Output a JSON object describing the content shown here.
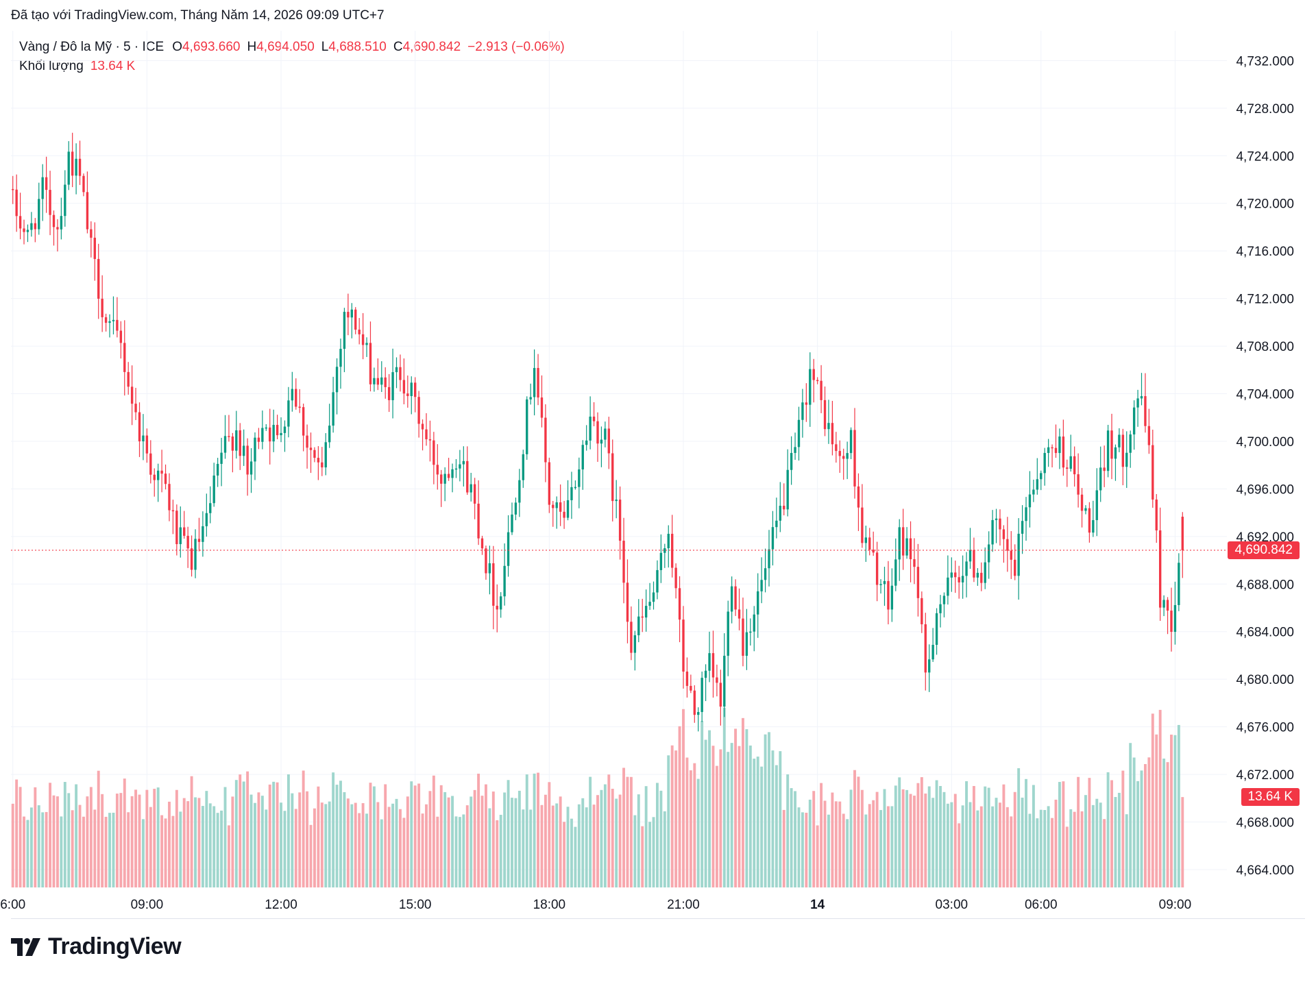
{
  "header": {
    "created_with": "Đã tạo với TradingView.com, Tháng Năm 14, 2026 09:09 UTC+7"
  },
  "legend": {
    "symbol": "Vàng / Đô la Mỹ · 5 · ICE",
    "o_label": "O",
    "o_value": "4,693.660",
    "h_label": "H",
    "h_value": "4,694.050",
    "l_label": "L",
    "l_value": "4,688.510",
    "c_label": "C",
    "c_value": "4,690.842",
    "change": "−2.913 (−0.06%)",
    "volume_label": "Khối lượng",
    "volume_value": "13.64 K"
  },
  "badges": {
    "last_price": "4,690.842",
    "last_volume": "13.64 K"
  },
  "brand": {
    "name": "TradingView",
    "logo": "tradingview-logo-icon"
  },
  "colors": {
    "up": "#089981",
    "down": "#f23645",
    "vol_up": "#9fd6cd",
    "vol_down": "#f7a7ad",
    "grid": "#f0f3fa"
  },
  "chart_data": {
    "type": "candlestick",
    "interval": "5m",
    "y_axis_side": "right",
    "ylim": [
      4662.5,
      4734.5
    ],
    "y_ticks": [
      "4,732.000",
      "4,728.000",
      "4,724.000",
      "4,720.000",
      "4,716.000",
      "4,712.000",
      "4,708.000",
      "4,704.000",
      "4,700.000",
      "4,696.000",
      "4,692.000",
      "4,688.000",
      "4,684.000",
      "4,680.000",
      "4,676.000",
      "4,672.000",
      "4,668.000",
      "4,664.000"
    ],
    "y_tick_values": [
      4732,
      4728,
      4724,
      4720,
      4716,
      4712,
      4708,
      4704,
      4700,
      4696,
      4692,
      4688,
      4684,
      4680,
      4676,
      4672,
      4668,
      4664
    ],
    "x_ticks": [
      {
        "label": "6:00",
        "bar": 0
      },
      {
        "label": "09:00",
        "bar": 36
      },
      {
        "label": "12:00",
        "bar": 72
      },
      {
        "label": "15:00",
        "bar": 108
      },
      {
        "label": "18:00",
        "bar": 144
      },
      {
        "label": "21:00",
        "bar": 180
      },
      {
        "label": "14",
        "bar": 216,
        "bold": true
      },
      {
        "label": "03:00",
        "bar": 252
      },
      {
        "label": "06:00",
        "bar": 276
      },
      {
        "label": "09:00",
        "bar": 312
      }
    ],
    "last_price": 4690.842,
    "volume_max_k": 30,
    "last_volume_k": 13.64,
    "close_path": [
      [
        0,
        4720
      ],
      [
        4,
        4717
      ],
      [
        8,
        4721
      ],
      [
        12,
        4718
      ],
      [
        15,
        4724
      ],
      [
        18,
        4722
      ],
      [
        21,
        4716
      ],
      [
        25,
        4710
      ],
      [
        29,
        4708
      ],
      [
        33,
        4702
      ],
      [
        37,
        4698
      ],
      [
        41,
        4696
      ],
      [
        44,
        4692
      ],
      [
        48,
        4690
      ],
      [
        52,
        4693
      ],
      [
        56,
        4699
      ],
      [
        60,
        4701
      ],
      [
        63,
        4697
      ],
      [
        67,
        4702
      ],
      [
        71,
        4700
      ],
      [
        75,
        4705
      ],
      [
        79,
        4700
      ],
      [
        83,
        4697
      ],
      [
        86,
        4704
      ],
      [
        89,
        4711
      ],
      [
        92,
        4710
      ],
      [
        96,
        4706
      ],
      [
        100,
        4704
      ],
      [
        104,
        4706
      ],
      [
        108,
        4703
      ],
      [
        111,
        4700
      ],
      [
        115,
        4697
      ],
      [
        119,
        4699
      ],
      [
        123,
        4696
      ],
      [
        127,
        4690
      ],
      [
        130,
        4686
      ],
      [
        134,
        4694
      ],
      [
        137,
        4700
      ],
      [
        140,
        4707
      ],
      [
        144,
        4695
      ],
      [
        148,
        4693
      ],
      [
        152,
        4698
      ],
      [
        155,
        4702
      ],
      [
        159,
        4700
      ],
      [
        163,
        4692
      ],
      [
        166,
        4683
      ],
      [
        169,
        4685
      ],
      [
        173,
        4688
      ],
      [
        176,
        4693
      ],
      [
        180,
        4681
      ],
      [
        183,
        4677
      ],
      [
        187,
        4681
      ],
      [
        190,
        4678
      ],
      [
        193,
        4689
      ],
      [
        196,
        4683
      ],
      [
        199,
        4686
      ],
      [
        202,
        4689
      ],
      [
        206,
        4694
      ],
      [
        210,
        4699
      ],
      [
        214,
        4706
      ],
      [
        218,
        4702
      ],
      [
        222,
        4698
      ],
      [
        225,
        4700
      ],
      [
        228,
        4692
      ],
      [
        232,
        4689
      ],
      [
        235,
        4686
      ],
      [
        238,
        4692
      ],
      [
        242,
        4690
      ],
      [
        245,
        4680
      ],
      [
        248,
        4686
      ],
      [
        252,
        4688
      ],
      [
        256,
        4690
      ],
      [
        260,
        4689
      ],
      [
        263,
        4693
      ],
      [
        266,
        4691
      ],
      [
        269,
        4689
      ],
      [
        272,
        4695
      ],
      [
        276,
        4698
      ],
      [
        280,
        4700
      ],
      [
        284,
        4698
      ],
      [
        287,
        4694
      ],
      [
        290,
        4693
      ],
      [
        294,
        4700
      ],
      [
        298,
        4699
      ],
      [
        302,
        4704
      ],
      [
        305,
        4700
      ],
      [
        308,
        4687
      ],
      [
        311,
        4685
      ],
      [
        314,
        4690.842
      ]
    ]
  }
}
